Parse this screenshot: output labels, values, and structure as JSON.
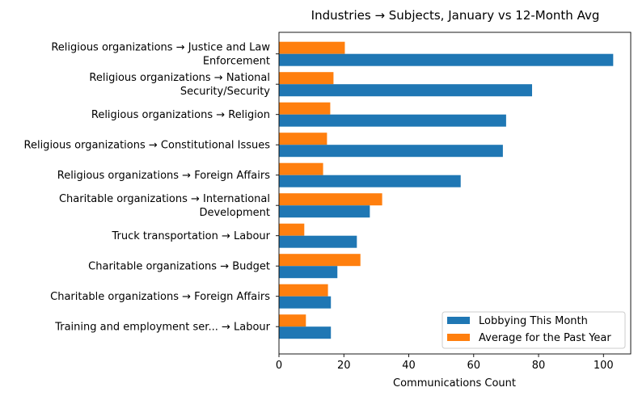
{
  "chart_data": {
    "type": "bar",
    "orientation": "horizontal",
    "title": "Industries → Subjects, January vs 12-Month Avg",
    "xlabel": "Communications Count",
    "ylabel": "",
    "xlim": [
      0,
      108.4
    ],
    "xticks": [
      0,
      20,
      40,
      60,
      80,
      100
    ],
    "grid": false,
    "legend_position": "lower-right",
    "categories": [
      [
        "Religious organizations → Justice and Law",
        "Enforcement"
      ],
      [
        "Religious organizations → National",
        "Security/Security"
      ],
      [
        "Religious organizations → Religion"
      ],
      [
        "Religious organizations → Constitutional Issues"
      ],
      [
        "Religious organizations → Foreign Affairs"
      ],
      [
        "Charitable organizations → International",
        "Development"
      ],
      [
        "Truck transportation → Labour"
      ],
      [
        "Charitable organizations → Budget"
      ],
      [
        "Charitable organizations → Foreign Affairs"
      ],
      [
        "Training and employment ser... → Labour"
      ]
    ],
    "series": [
      {
        "name": "Lobbying This Month",
        "color": "#1f77b4",
        "values": [
          103,
          78,
          70,
          69,
          56,
          28,
          24,
          18,
          16,
          16
        ]
      },
      {
        "name": "Average for the Past Year",
        "color": "#ff7f0e",
        "values": [
          20.3,
          16.8,
          15.8,
          14.8,
          13.6,
          31.8,
          7.8,
          25.1,
          15.1,
          8.3
        ]
      }
    ]
  }
}
